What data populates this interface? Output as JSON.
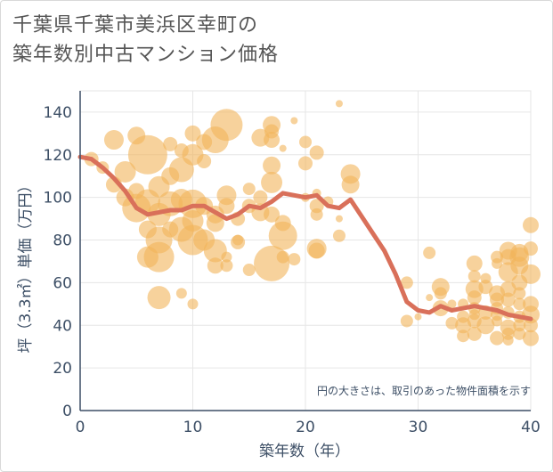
{
  "title_line1": "千葉県千葉市美浜区幸町の",
  "title_line2": "築年数別中古マンション価格",
  "chart_data": {
    "type": "scatter",
    "xlabel": "築年数（年）",
    "ylabel": "坪（3.3㎡）単価（万円）",
    "xlim": [
      0,
      40
    ],
    "ylim": [
      0,
      150
    ],
    "xticks": [
      0,
      10,
      20,
      30,
      40
    ],
    "yticks": [
      0,
      20,
      40,
      60,
      80,
      100,
      120,
      140
    ],
    "grid": true,
    "note": "円の大きさは、取引のあった物件面積を示す",
    "colors": {
      "bubble": "#f2b45a",
      "line": "#d9705a",
      "axis": "#3d4f66",
      "grid": "#e6e6e6"
    },
    "series": [
      {
        "type": "bubble",
        "points": [
          [
            1,
            118,
            8
          ],
          [
            2,
            114,
            7
          ],
          [
            3,
            127,
            11
          ],
          [
            3,
            106,
            9
          ],
          [
            4,
            112,
            12
          ],
          [
            4,
            100,
            10
          ],
          [
            5,
            95,
            16
          ],
          [
            5,
            129,
            10
          ],
          [
            5,
            103,
            9
          ],
          [
            6,
            120,
            22
          ],
          [
            6,
            98,
            14
          ],
          [
            6,
            85,
            10
          ],
          [
            6,
            72,
            12
          ],
          [
            7,
            92,
            13
          ],
          [
            7,
            105,
            12
          ],
          [
            7,
            80,
            15
          ],
          [
            7,
            53,
            13
          ],
          [
            7,
            72,
            17
          ],
          [
            8,
            97,
            14
          ],
          [
            8,
            85,
            9
          ],
          [
            8,
            110,
            10
          ],
          [
            8,
            125,
            8
          ],
          [
            9,
            113,
            14
          ],
          [
            9,
            99,
            12
          ],
          [
            9,
            85,
            14
          ],
          [
            9,
            122,
            8
          ],
          [
            9,
            55,
            6
          ],
          [
            10,
            97,
            16
          ],
          [
            10,
            89,
            12
          ],
          [
            10,
            80,
            17
          ],
          [
            10,
            130,
            9
          ],
          [
            10,
            120,
            12
          ],
          [
            10,
            50,
            6
          ],
          [
            11,
            96,
            10
          ],
          [
            11,
            80,
            12
          ],
          [
            11,
            117,
            8
          ],
          [
            11,
            126,
            9
          ],
          [
            12,
            92,
            10
          ],
          [
            12,
            75,
            13
          ],
          [
            12,
            68,
            9
          ],
          [
            12,
            88,
            10
          ],
          [
            12,
            127,
            15
          ],
          [
            13,
            134,
            18
          ],
          [
            13,
            101,
            11
          ],
          [
            13,
            96,
            9
          ],
          [
            13,
            72,
            6
          ],
          [
            13,
            68,
            7
          ],
          [
            14,
            90,
            8
          ],
          [
            14,
            79,
            8
          ],
          [
            14,
            80,
            6
          ],
          [
            15,
            104,
            7
          ],
          [
            15,
            96,
            8
          ],
          [
            15,
            66,
            7
          ],
          [
            16,
            128,
            10
          ],
          [
            16,
            93,
            10
          ],
          [
            16,
            100,
            8
          ],
          [
            17,
            107,
            12
          ],
          [
            17,
            69,
            20
          ],
          [
            17,
            115,
            10
          ],
          [
            17,
            131,
            8
          ],
          [
            17,
            134,
            10
          ],
          [
            17,
            127,
            9
          ],
          [
            17,
            92,
            9
          ],
          [
            18,
            82,
            16
          ],
          [
            18,
            88,
            9
          ],
          [
            18,
            123,
            4
          ],
          [
            18,
            72,
            7
          ],
          [
            19,
            136,
            4
          ],
          [
            19,
            71,
            7
          ],
          [
            20,
            116,
            8
          ],
          [
            20,
            126,
            7
          ],
          [
            20,
            100,
            5
          ],
          [
            21,
            121,
            8
          ],
          [
            21,
            96,
            8
          ],
          [
            21,
            92,
            7
          ],
          [
            21,
            76,
            11
          ],
          [
            21,
            75,
            9
          ],
          [
            21,
            102,
            5
          ],
          [
            22,
            98,
            6
          ],
          [
            23,
            144,
            4
          ],
          [
            23,
            82,
            7
          ],
          [
            23,
            90,
            4
          ],
          [
            24,
            111,
            11
          ],
          [
            24,
            106,
            10
          ],
          [
            29,
            60,
            7
          ],
          [
            29,
            42,
            7
          ],
          [
            30,
            44,
            4
          ],
          [
            31,
            74,
            7
          ],
          [
            31,
            53,
            4
          ],
          [
            32,
            58,
            10
          ],
          [
            32,
            55,
            7
          ],
          [
            32,
            48,
            9
          ],
          [
            33,
            41,
            7
          ],
          [
            33,
            50,
            5
          ],
          [
            34,
            50,
            6
          ],
          [
            34,
            40,
            9
          ],
          [
            34,
            44,
            7
          ],
          [
            34,
            35,
            7
          ],
          [
            35,
            69,
            9
          ],
          [
            35,
            63,
            7
          ],
          [
            35,
            57,
            10
          ],
          [
            35,
            53,
            8
          ],
          [
            35,
            48,
            7
          ],
          [
            35,
            45,
            6
          ],
          [
            35,
            42,
            8
          ],
          [
            35,
            36,
            8
          ],
          [
            36,
            46,
            8
          ],
          [
            36,
            40,
            10
          ],
          [
            36,
            58,
            8
          ],
          [
            36,
            62,
            6
          ],
          [
            37,
            72,
            7
          ],
          [
            37,
            69,
            6
          ],
          [
            37,
            55,
            9
          ],
          [
            37,
            52,
            8
          ],
          [
            37,
            48,
            7
          ],
          [
            37,
            45,
            7
          ],
          [
            37,
            42,
            6
          ],
          [
            37,
            34,
            8
          ],
          [
            38,
            75,
            10
          ],
          [
            38,
            65,
            11
          ],
          [
            38,
            72,
            9
          ],
          [
            38,
            57,
            9
          ],
          [
            38,
            52,
            8
          ],
          [
            38,
            46,
            7
          ],
          [
            38,
            39,
            9
          ],
          [
            38,
            36,
            7
          ],
          [
            38,
            33,
            6
          ],
          [
            39,
            74,
            10
          ],
          [
            39,
            68,
            10
          ],
          [
            39,
            72,
            11
          ],
          [
            39,
            60,
            9
          ],
          [
            39,
            55,
            7
          ],
          [
            39,
            50,
            7
          ],
          [
            39,
            44,
            7
          ],
          [
            39,
            40,
            7
          ],
          [
            39,
            36,
            7
          ],
          [
            40,
            87,
            9
          ],
          [
            40,
            76,
            8
          ],
          [
            40,
            64,
            11
          ],
          [
            40,
            50,
            9
          ],
          [
            40,
            45,
            10
          ],
          [
            40,
            40,
            8
          ],
          [
            40,
            34,
            9
          ]
        ]
      },
      {
        "type": "line",
        "points": [
          [
            0,
            119
          ],
          [
            1,
            118
          ],
          [
            2,
            114
          ],
          [
            3,
            109
          ],
          [
            4,
            103
          ],
          [
            5,
            95
          ],
          [
            6,
            92
          ],
          [
            7,
            93
          ],
          [
            8,
            94
          ],
          [
            9,
            94
          ],
          [
            10,
            96
          ],
          [
            11,
            96
          ],
          [
            12,
            93
          ],
          [
            13,
            90
          ],
          [
            14,
            92
          ],
          [
            15,
            96
          ],
          [
            16,
            95
          ],
          [
            17,
            98
          ],
          [
            18,
            102
          ],
          [
            19,
            101
          ],
          [
            20,
            100
          ],
          [
            21,
            101
          ],
          [
            22,
            96
          ],
          [
            23,
            95
          ],
          [
            24,
            99
          ],
          [
            25,
            91
          ],
          [
            26,
            83
          ],
          [
            27,
            75
          ],
          [
            28,
            64
          ],
          [
            29,
            51
          ],
          [
            30,
            47
          ],
          [
            31,
            46
          ],
          [
            32,
            49
          ],
          [
            33,
            47
          ],
          [
            34,
            48
          ],
          [
            35,
            49
          ],
          [
            36,
            48
          ],
          [
            37,
            47
          ],
          [
            38,
            45
          ],
          [
            39,
            44
          ],
          [
            40,
            43
          ]
        ]
      }
    ]
  }
}
